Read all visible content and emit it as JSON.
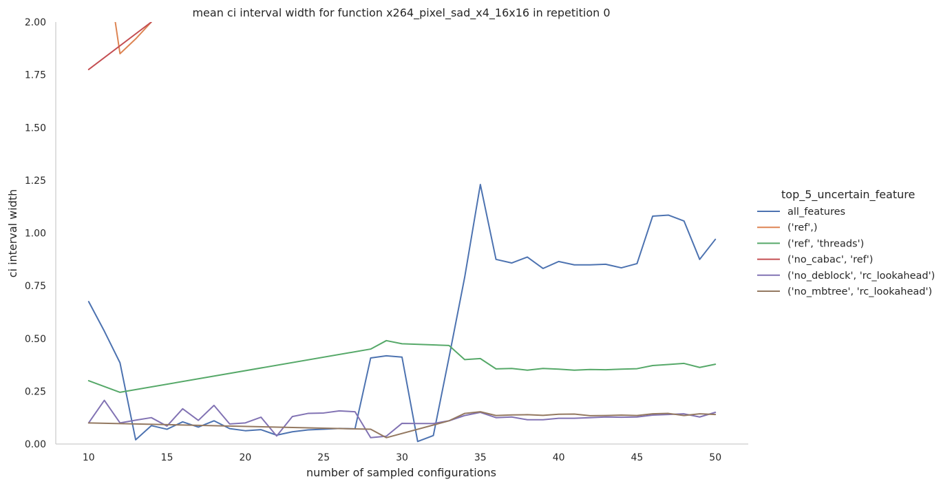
{
  "chart_data": {
    "type": "line",
    "title": "mean ci interval width for function x264_pixel_sad_x4_16x16 in repetition 0",
    "xlabel": "number of sampled configurations",
    "ylabel": "ci interval width",
    "xlim": [
      7.9,
      52.1
    ],
    "ylim": [
      0,
      2.0
    ],
    "xticks": [
      10,
      15,
      20,
      25,
      30,
      35,
      40,
      45,
      50
    ],
    "yticks": [
      0.0,
      0.25,
      0.5,
      0.75,
      1.0,
      1.25,
      1.5,
      1.75,
      2.0
    ],
    "ytick_labels": [
      "0.00",
      "0.25",
      "0.50",
      "0.75",
      "1.00",
      "1.25",
      "1.50",
      "1.75",
      "2.00"
    ],
    "grid": false,
    "legend": {
      "title": "top_5_uncertain_feature",
      "placement": "right"
    },
    "series": [
      {
        "name": "all_features",
        "color": "#4c72b0",
        "x": [
          10,
          11,
          12,
          13,
          14,
          15,
          16,
          17,
          18,
          19,
          20,
          21,
          22,
          23,
          24,
          25,
          26,
          27,
          28,
          29,
          30,
          31,
          32,
          33,
          34,
          35,
          36,
          37,
          38,
          39,
          40,
          41,
          42,
          43,
          44,
          45,
          46,
          47,
          48,
          49,
          50
        ],
        "y": [
          0.675,
          0.535,
          0.385,
          0.02,
          0.087,
          0.07,
          0.105,
          0.08,
          0.11,
          0.073,
          0.063,
          0.068,
          0.042,
          0.058,
          0.067,
          0.07,
          0.074,
          0.072,
          0.408,
          0.418,
          0.412,
          0.012,
          0.04,
          0.41,
          0.79,
          1.23,
          0.875,
          0.858,
          0.886,
          0.832,
          0.865,
          0.849,
          0.849,
          0.852,
          0.835,
          0.855,
          1.08,
          1.085,
          1.057,
          0.875,
          0.97
        ]
      },
      {
        "name": "('ref',)",
        "color": "#dd8452",
        "x": [
          11,
          12,
          13,
          14
        ],
        "y": [
          2.35,
          1.85,
          1.92,
          2.0
        ]
      },
      {
        "name": "('ref', 'threads')",
        "color": "#55a868",
        "x": [
          10,
          12,
          28,
          29,
          30,
          33,
          34,
          35,
          36,
          37,
          38,
          39,
          40,
          41,
          42,
          43,
          44,
          45,
          46,
          47,
          48,
          49,
          50
        ],
        "y": [
          0.3,
          0.245,
          0.45,
          0.49,
          0.475,
          0.467,
          0.4,
          0.405,
          0.356,
          0.358,
          0.35,
          0.358,
          0.355,
          0.35,
          0.353,
          0.352,
          0.355,
          0.357,
          0.372,
          0.377,
          0.382,
          0.363,
          0.378
        ]
      },
      {
        "name": "('no_cabac', 'ref')",
        "color": "#c44e52",
        "x": [
          10,
          14
        ],
        "y": [
          1.775,
          2.0
        ]
      },
      {
        "name": "('no_deblock', 'rc_lookahead')",
        "color": "#8172b3",
        "x": [
          10,
          11,
          12,
          13,
          14,
          15,
          16,
          17,
          18,
          19,
          20,
          21,
          22,
          23,
          24,
          25,
          26,
          27,
          28,
          29,
          30,
          31,
          32,
          33,
          34,
          35,
          36,
          37,
          38,
          39,
          40,
          41,
          42,
          43,
          44,
          45,
          46,
          47,
          48,
          49,
          50
        ],
        "y": [
          0.1,
          0.207,
          0.1,
          0.113,
          0.125,
          0.085,
          0.167,
          0.112,
          0.183,
          0.095,
          0.1,
          0.127,
          0.038,
          0.13,
          0.145,
          0.147,
          0.157,
          0.153,
          0.03,
          0.037,
          0.098,
          0.097,
          0.097,
          0.11,
          0.135,
          0.15,
          0.125,
          0.128,
          0.115,
          0.115,
          0.122,
          0.122,
          0.125,
          0.128,
          0.127,
          0.128,
          0.137,
          0.14,
          0.143,
          0.128,
          0.15
        ]
      },
      {
        "name": "('no_mbtree', 'rc_lookahead')",
        "color": "#937860",
        "x": [
          10,
          28,
          29,
          33,
          34,
          35,
          36,
          37,
          38,
          39,
          40,
          41,
          42,
          43,
          44,
          45,
          46,
          47,
          48,
          49,
          50
        ],
        "y": [
          0.1,
          0.07,
          0.03,
          0.11,
          0.145,
          0.153,
          0.135,
          0.138,
          0.139,
          0.136,
          0.141,
          0.142,
          0.134,
          0.135,
          0.137,
          0.135,
          0.143,
          0.145,
          0.135,
          0.143,
          0.14
        ]
      }
    ]
  }
}
